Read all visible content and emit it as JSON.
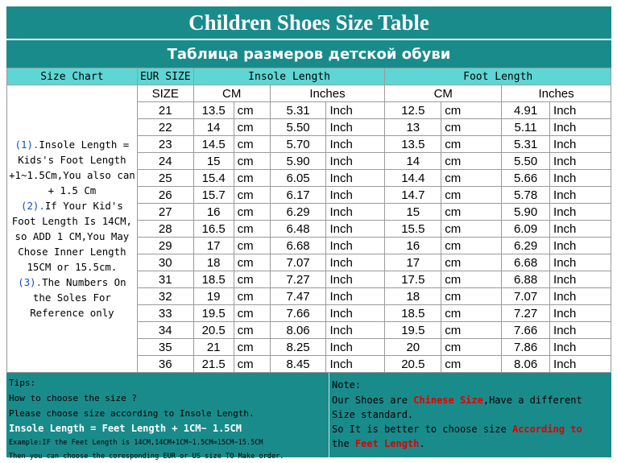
{
  "title_en": "Children Shoes Size Table",
  "title_ru": "Таблица размеров детской обуви",
  "headers": {
    "size_chart": "Size Chart",
    "eur_size": "EUR SIZE",
    "insole_length": "Insole Length",
    "foot_length": "Foot Length",
    "size": "SIZE",
    "cm": "CM",
    "inches": "Inches"
  },
  "units": {
    "cm": "cm",
    "inch": "Inch"
  },
  "side_note": {
    "n1": "(1).",
    "t1": "Insole Length = Kids's Foot Length +1~1.5Cm,You also can + 1.5 Cm",
    "n2": "(2).",
    "t2": "If Your Kid's Foot Length Is 14CM,  so ADD 1 CM,You May Chose Inner Length 15CM or 15.5cm.",
    "n3": "(3).",
    "t3": "The Numbers On the Soles For Reference only"
  },
  "rows": [
    {
      "size": "21",
      "insole_cm": "13.5",
      "insole_in": "5.31",
      "foot_cm": "12.5",
      "foot_in": "4.91"
    },
    {
      "size": "22",
      "insole_cm": "14",
      "insole_in": "5.50",
      "foot_cm": "13",
      "foot_in": "5.11"
    },
    {
      "size": "23",
      "insole_cm": "14.5",
      "insole_in": "5.70",
      "foot_cm": "13.5",
      "foot_in": "5.31"
    },
    {
      "size": "24",
      "insole_cm": "15",
      "insole_in": "5.90",
      "foot_cm": "14",
      "foot_in": "5.50"
    },
    {
      "size": "25",
      "insole_cm": "15.4",
      "insole_in": "6.05",
      "foot_cm": "14.4",
      "foot_in": "5.66"
    },
    {
      "size": "26",
      "insole_cm": "15.7",
      "insole_in": "6.17",
      "foot_cm": "14.7",
      "foot_in": "5.78"
    },
    {
      "size": "27",
      "insole_cm": "16",
      "insole_in": "6.29",
      "foot_cm": "15",
      "foot_in": "5.90"
    },
    {
      "size": "28",
      "insole_cm": "16.5",
      "insole_in": "6.48",
      "foot_cm": "15.5",
      "foot_in": "6.09"
    },
    {
      "size": "29",
      "insole_cm": "17",
      "insole_in": "6.68",
      "foot_cm": "16",
      "foot_in": "6.29"
    },
    {
      "size": "30",
      "insole_cm": "18",
      "insole_in": "7.07",
      "foot_cm": "17",
      "foot_in": "6.68"
    },
    {
      "size": "31",
      "insole_cm": "18.5",
      "insole_in": "7.27",
      "foot_cm": "17.5",
      "foot_in": "6.88"
    },
    {
      "size": "32",
      "insole_cm": "19",
      "insole_in": "7.47",
      "foot_cm": "18",
      "foot_in": "7.07"
    },
    {
      "size": "33",
      "insole_cm": "19.5",
      "insole_in": "7.66",
      "foot_cm": "18.5",
      "foot_in": "7.27"
    },
    {
      "size": "34",
      "insole_cm": "20.5",
      "insole_in": "8.06",
      "foot_cm": "19.5",
      "foot_in": "7.66"
    },
    {
      "size": "35",
      "insole_cm": "21",
      "insole_in": "8.25",
      "foot_cm": "20",
      "foot_in": "7.86"
    },
    {
      "size": "36",
      "insole_cm": "21.5",
      "insole_in": "8.45",
      "foot_cm": "20.5",
      "foot_in": "8.06"
    }
  ],
  "tips": {
    "label": "Tips:",
    "line1": "How to choose the size ?",
    "line2": "Please choose size according to Insole Length.",
    "line3": "Insole Length = Feet Length + 1CM~ 1.5CM",
    "line4": "Example:IF the Feet Length is 14CM,14CM+1CM~1.5CM=15CM~15.5CM",
    "line5": "Then you can choose the coresponding EUR or US size TO Make order."
  },
  "note": {
    "label": "Note:",
    "l1a": "Our Shoes are ",
    "l1b": "Chinese Size",
    "l1c": ",Have a different",
    "l2": "Size standard.",
    "l3a": "So It is better to choose size ",
    "l3b": "According to",
    "l4a": "the ",
    "l4b": "Feet Length",
    "l4c": "."
  },
  "colors": {
    "teal_dark": "#1a8b8b",
    "teal_light": "#5ed6d6",
    "unit_red": "#e00000",
    "number_blue": "#1050c0"
  }
}
